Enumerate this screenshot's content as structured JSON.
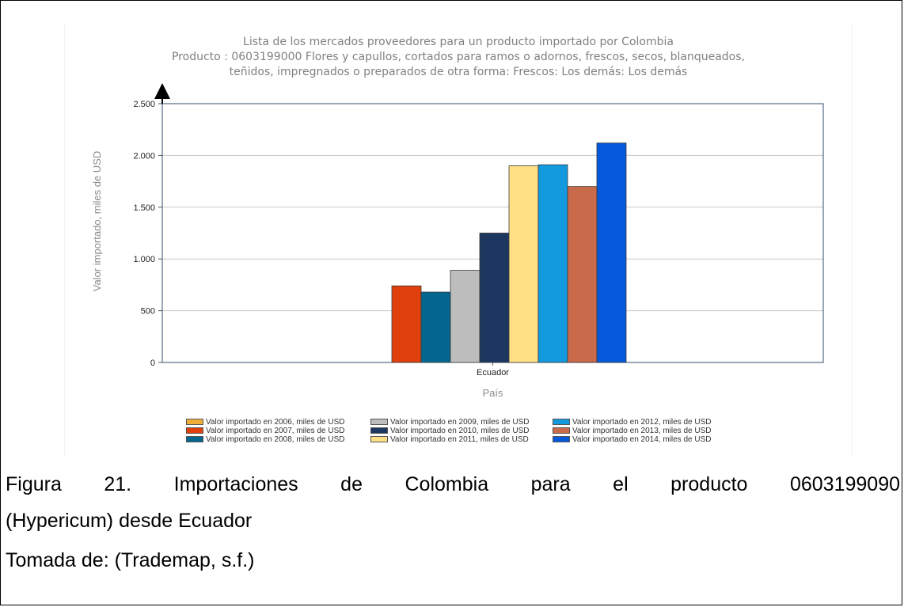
{
  "chart_data": {
    "type": "bar",
    "title": "Lista de los mercados proveedores para un producto importado por Colombia",
    "subtitle_lines": [
      "Producto : 0603199000 Flores y capullos, cortados para ramos o adornos, frescos, secos, blanqueados,",
      "teñidos, impregnados o preparados de otra forma: Frescos: Los demás: Los demás"
    ],
    "xlabel": "País",
    "ylabel": "Valor importado, miles de USD",
    "categories": [
      "Ecuador"
    ],
    "ylim": [
      0,
      2500
    ],
    "yticks": [
      0,
      500,
      1000,
      1500,
      2000,
      2500
    ],
    "ytick_labels": [
      "0",
      "500",
      "1.000",
      "1.500",
      "2.000",
      "2.500"
    ],
    "grid": true,
    "legend_position": "bottom",
    "series": [
      {
        "name": "Valor importado en 2006, miles de USD",
        "values": [
          0
        ],
        "color": "#f0ad3c"
      },
      {
        "name": "Valor importado en 2007, miles de USD",
        "values": [
          740
        ],
        "color": "#e0400b"
      },
      {
        "name": "Valor importado en 2008, miles de USD",
        "values": [
          680
        ],
        "color": "#03668f"
      },
      {
        "name": "Valor importado en 2009, miles de USD",
        "values": [
          890
        ],
        "color": "#bdbdbd"
      },
      {
        "name": "Valor importado en 2010, miles de USD",
        "values": [
          1250
        ],
        "color": "#1c3760"
      },
      {
        "name": "Valor importado en 2011, miles de USD",
        "values": [
          1900
        ],
        "color": "#ffe085"
      },
      {
        "name": "Valor importado en 2012, miles de USD",
        "values": [
          1910
        ],
        "color": "#1399dd"
      },
      {
        "name": "Valor importado en 2013, miles de USD",
        "values": [
          1700
        ],
        "color": "#c96a4b"
      },
      {
        "name": "Valor importado en 2014, miles de USD",
        "values": [
          2120
        ],
        "color": "#0359d9"
      }
    ]
  },
  "caption": {
    "line1": "Figura 21. Importaciones de Colombia para el producto 0603199090",
    "line2": "(Hypericum) desde Ecuador",
    "line3": "Tomada de: (Trademap, s.f.)"
  }
}
